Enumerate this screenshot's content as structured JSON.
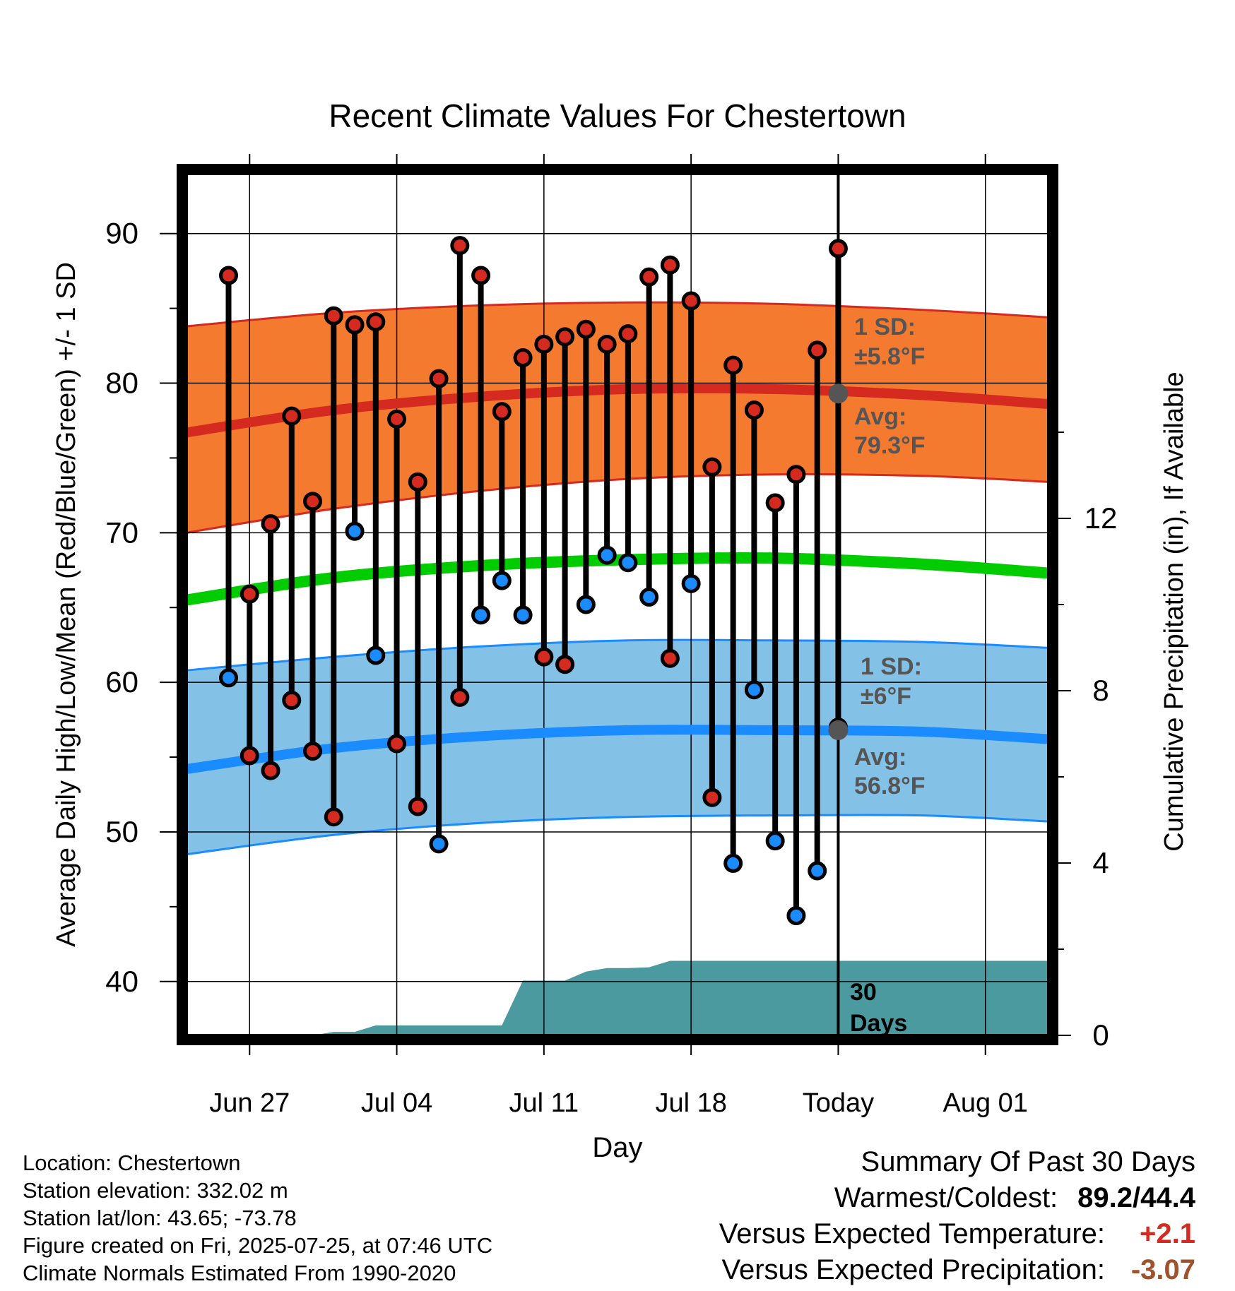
{
  "chart_data": {
    "type": "line",
    "title": "Recent Climate Values For Chestertown",
    "xlabel": "Day",
    "ylabel": "Average Daily High/Low/Mean (Red/Blue/Green) +/- 1 SD",
    "y2label": "Cumulative Precipitation (in), If Available",
    "xlim": [
      "2025-06-24",
      "2025-08-04"
    ],
    "ylim": [
      36.4,
      94.0
    ],
    "y2lim": [
      0,
      20
    ],
    "x_ticks": [
      {
        "date": "2025-06-27",
        "label": "Jun 27"
      },
      {
        "date": "2025-07-04",
        "label": "Jul 04"
      },
      {
        "date": "2025-07-11",
        "label": "Jul 11"
      },
      {
        "date": "2025-07-18",
        "label": "Jul 18"
      },
      {
        "date": "2025-07-25",
        "label": "Today"
      },
      {
        "date": "2025-08-01",
        "label": "Aug 01"
      }
    ],
    "y_ticks": [
      40,
      50,
      60,
      70,
      80,
      90
    ],
    "y2_ticks": [
      0,
      4,
      8,
      12
    ],
    "grid": true,
    "today": "2025-07-25",
    "daily_observations": {
      "dates": [
        "2025-06-26",
        "2025-06-27",
        "2025-06-28",
        "2025-06-29",
        "2025-06-30",
        "2025-07-01",
        "2025-07-02",
        "2025-07-03",
        "2025-07-04",
        "2025-07-05",
        "2025-07-06",
        "2025-07-07",
        "2025-07-08",
        "2025-07-09",
        "2025-07-10",
        "2025-07-11",
        "2025-07-12",
        "2025-07-13",
        "2025-07-14",
        "2025-07-15",
        "2025-07-16",
        "2025-07-17",
        "2025-07-18",
        "2025-07-19",
        "2025-07-20",
        "2025-07-21",
        "2025-07-22",
        "2025-07-23",
        "2025-07-24",
        "2025-07-25"
      ],
      "high": [
        87.2,
        65.9,
        70.6,
        77.8,
        72.1,
        84.5,
        83.9,
        84.1,
        77.6,
        73.4,
        80.3,
        89.2,
        87.2,
        78.1,
        81.7,
        82.6,
        83.1,
        83.6,
        82.6,
        83.3,
        87.1,
        87.9,
        85.5,
        74.4,
        81.2,
        78.2,
        72.0,
        73.9,
        82.2,
        89.0
      ],
      "low": [
        60.3,
        55.1,
        54.1,
        58.8,
        55.4,
        51.0,
        70.1,
        61.8,
        55.9,
        51.7,
        49.2,
        59.0,
        64.5,
        66.8,
        64.5,
        61.7,
        61.2,
        65.2,
        68.5,
        68.0,
        65.7,
        61.6,
        66.6,
        52.3,
        47.9,
        59.5,
        49.4,
        44.4,
        47.4,
        57.0
      ],
      "low_marker_color": [
        "blue",
        "red",
        "red",
        "red",
        "red",
        "red",
        "blue",
        "blue",
        "red",
        "red",
        "blue",
        "red",
        "blue",
        "blue",
        "blue",
        "red",
        "red",
        "blue",
        "blue",
        "blue",
        "blue",
        "red",
        "blue",
        "red",
        "blue",
        "blue",
        "blue",
        "blue",
        "blue",
        "red"
      ]
    },
    "normals": {
      "dates": [
        "2025-06-24",
        "2025-07-01",
        "2025-07-08",
        "2025-07-15",
        "2025-07-22",
        "2025-07-29",
        "2025-08-04"
      ],
      "high_avg": [
        76.7,
        78.2,
        79.1,
        79.6,
        79.6,
        79.2,
        78.6
      ],
      "high_plus_sd": [
        83.8,
        84.7,
        85.2,
        85.4,
        85.3,
        84.9,
        84.4
      ],
      "high_minus_sd": [
        70.0,
        71.6,
        72.8,
        73.6,
        73.9,
        73.8,
        73.4
      ],
      "mean": [
        65.5,
        67.0,
        67.8,
        68.2,
        68.3,
        67.9,
        67.3
      ],
      "low_avg": [
        54.2,
        55.6,
        56.4,
        56.8,
        56.8,
        56.7,
        56.2
      ],
      "low_plus_sd": [
        60.8,
        61.7,
        62.4,
        62.8,
        62.8,
        62.7,
        62.3
      ],
      "low_minus_sd": [
        48.5,
        49.8,
        50.6,
        51.0,
        51.1,
        51.1,
        50.7
      ]
    },
    "cumulative_precipitation": {
      "dates": [
        "2025-06-24",
        "2025-06-30",
        "2025-07-01",
        "2025-07-02",
        "2025-07-03",
        "2025-07-04",
        "2025-07-05",
        "2025-07-06",
        "2025-07-07",
        "2025-07-08",
        "2025-07-09",
        "2025-07-10",
        "2025-07-11",
        "2025-07-12",
        "2025-07-13",
        "2025-07-14",
        "2025-07-15",
        "2025-07-16",
        "2025-07-17",
        "2025-07-18",
        "2025-07-19",
        "2025-07-20",
        "2025-07-21",
        "2025-07-22",
        "2025-07-23",
        "2025-07-24",
        "2025-07-25"
      ],
      "values": [
        0,
        0,
        0.08,
        0.08,
        0.23,
        0.23,
        0.23,
        0.23,
        0.23,
        0.23,
        0.23,
        1.27,
        1.27,
        1.27,
        1.48,
        1.56,
        1.56,
        1.58,
        1.73,
        1.73,
        1.73,
        1.73,
        1.73,
        1.73,
        1.73,
        1.73,
        1.73
      ]
    },
    "annotations": {
      "high_sd": {
        "line1": "1 SD:",
        "line2": "±5.8°F"
      },
      "high_avg": {
        "line1": "Avg:",
        "line2": "79.3°F",
        "value": 79.3
      },
      "low_sd": {
        "line1": "1 SD:",
        "line2": "±6°F"
      },
      "low_avg": {
        "line1": "Avg:",
        "line2": "56.8°F",
        "value": 56.8
      },
      "period": {
        "line1": "30",
        "line2": "Days"
      }
    },
    "colors": {
      "high_band": "#f47a30",
      "high_line": "#d42a20",
      "mean_line": "#00cc00",
      "low_band": "#84c1e6",
      "low_line": "#1a8cff",
      "precip_fill": "#4a9aa0",
      "marker_red": "#d42a20",
      "marker_blue": "#1a8cff",
      "avg_dot": "#555555",
      "annotation_text": "#555555"
    }
  },
  "footer": {
    "location": "Location: Chestertown",
    "elevation": "Station elevation: 332.02 m",
    "latlon": "Station lat/lon: 43.65; -73.78",
    "created": "Figure created on Fri, 2025-07-25, at 07:46 UTC",
    "normals": "Climate Normals Estimated From 1990-2020"
  },
  "summary": {
    "title": "Summary Of Past 30 Days",
    "warm_cold_label": "Warmest/Coldest:",
    "warm_cold_value": "89.2/44.4",
    "temp_label": "Versus Expected Temperature:",
    "temp_value": "+2.1",
    "temp_color": "#d42a20",
    "precip_label": "Versus Expected Precipitation:",
    "precip_value": "-3.07",
    "precip_color": "#a0522d"
  }
}
